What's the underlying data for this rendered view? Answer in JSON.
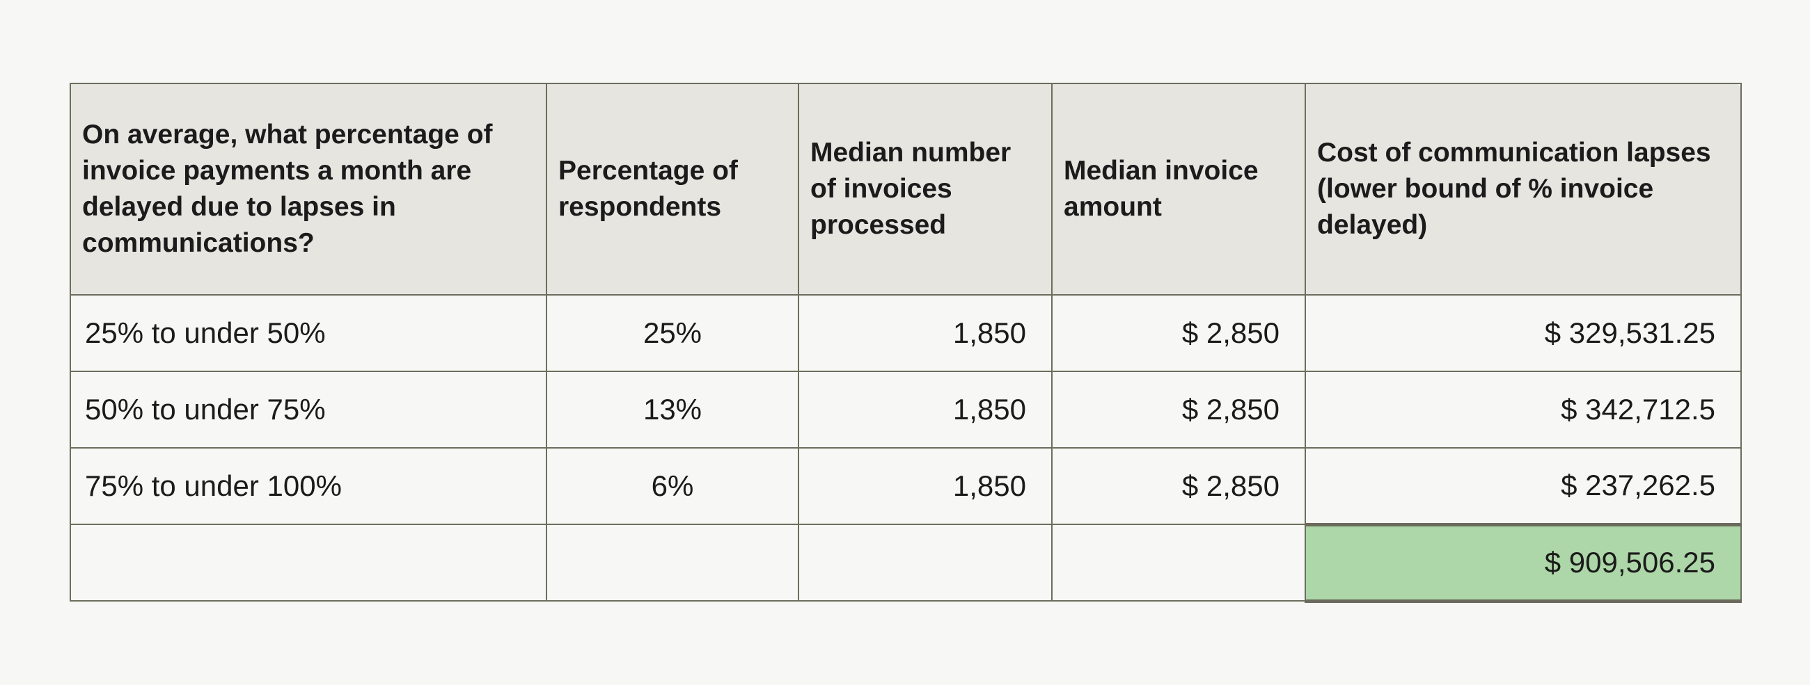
{
  "table": {
    "headers": [
      "On average, what percentage of invoice payments a month are delayed due to lapses in communications?",
      "Percentage of respondents",
      "Median number of invoices processed",
      "Median invoice amount",
      "Cost of communication lapses (lower bound of % invoice delayed)"
    ],
    "rows": [
      {
        "range": "25% to under 50%",
        "pct": "25%",
        "invoices": "1,850",
        "amount": "$ 2,850",
        "cost": "$ 329,531.25"
      },
      {
        "range": "50% to under 75%",
        "pct": "13%",
        "invoices": "1,850",
        "amount": "$ 2,850",
        "cost": "$ 342,712.5"
      },
      {
        "range": "75% to under 100%",
        "pct": "6%",
        "invoices": "1,850",
        "amount": "$ 2,850",
        "cost": "$ 237,262.5"
      }
    ],
    "total": {
      "range": "",
      "pct": "",
      "invoices": "",
      "amount": "",
      "cost": "$ 909,506.25"
    },
    "colors": {
      "header_bg": "#e6e5e0",
      "body_bg": "#f7f7f5",
      "border": "#6b6e5c",
      "total_highlight": "#add7a8"
    }
  }
}
